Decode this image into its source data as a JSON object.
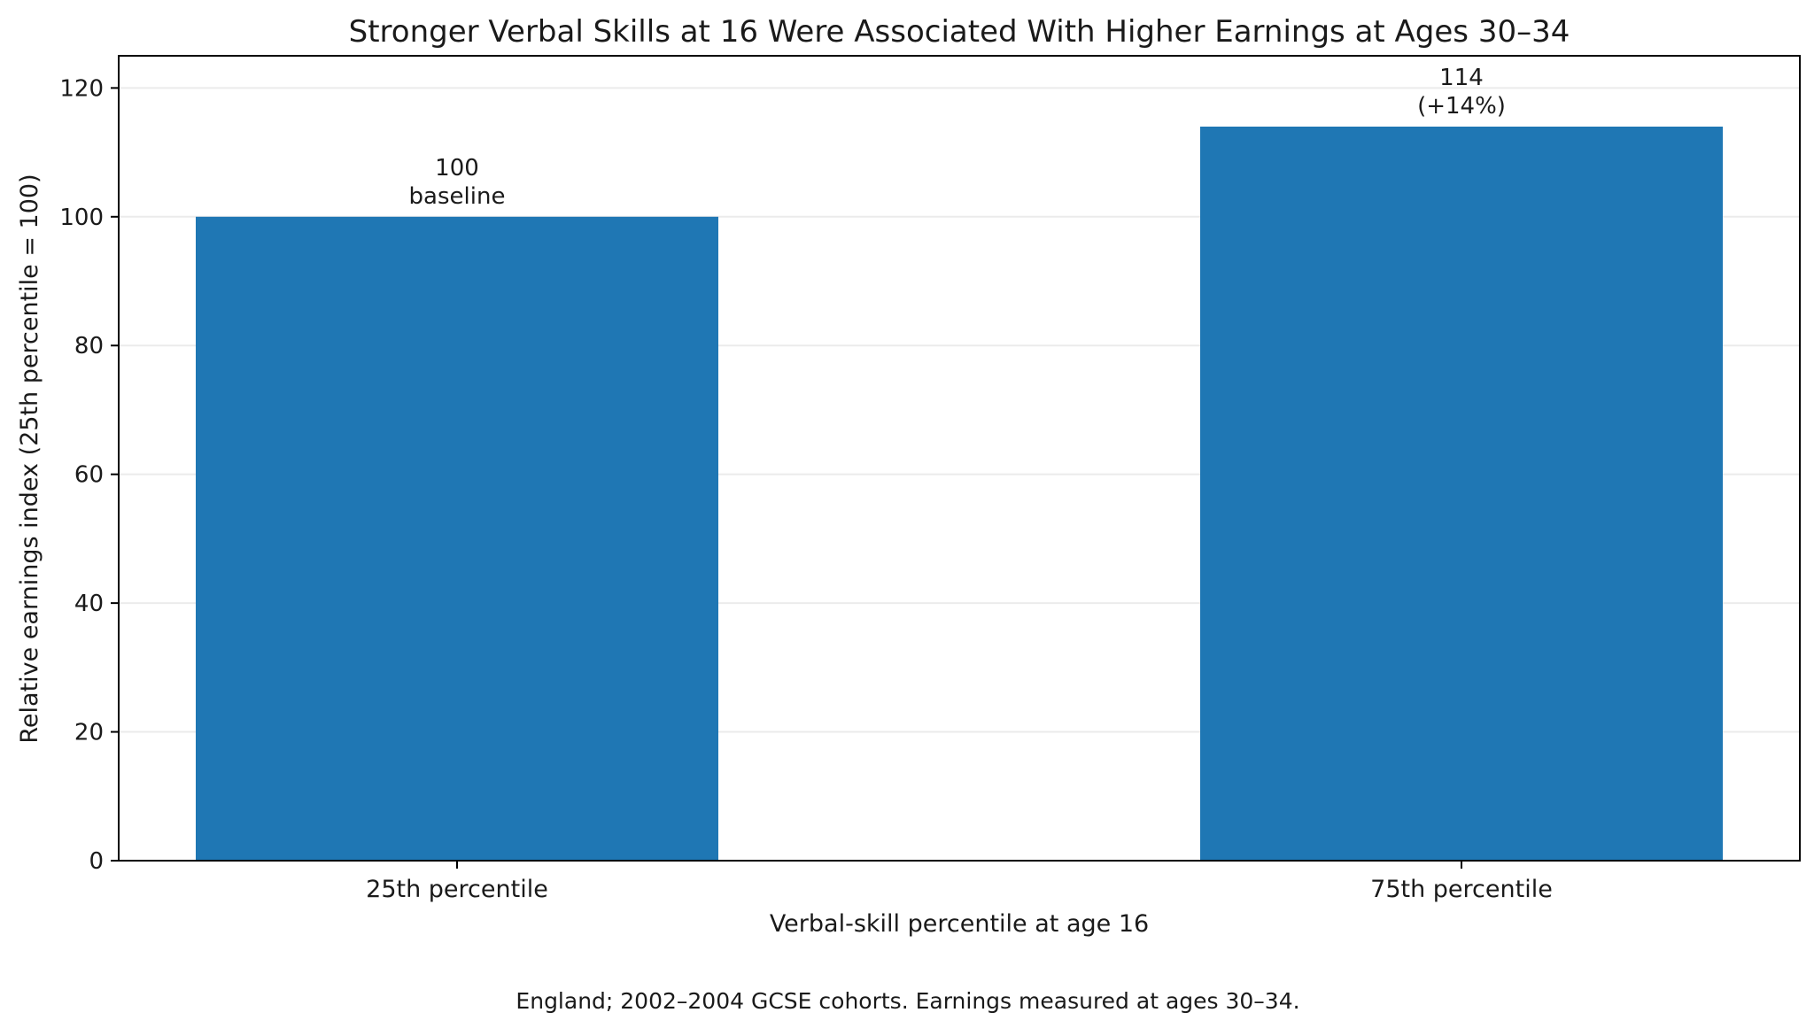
{
  "chart_data": {
    "type": "bar",
    "title": "Stronger Verbal Skills at 16 Were Associated With Higher Earnings at Ages 30–34",
    "xlabel": "Verbal-skill percentile at age 16",
    "ylabel": "Relative earnings index (25th percentile = 100)",
    "categories": [
      "25th percentile",
      "75th percentile"
    ],
    "values": [
      100,
      114
    ],
    "bar_labels": [
      [
        "100",
        "baseline"
      ],
      [
        "114",
        "(+14%)"
      ]
    ],
    "ylim": [
      0,
      125
    ],
    "yticks": [
      "0",
      "20",
      "40",
      "60",
      "80",
      "100",
      "120"
    ],
    "ytick_values": [
      0,
      20,
      40,
      60,
      80,
      100,
      120
    ],
    "grid": "horizontal",
    "bar_color": "#1f77b4",
    "footnote": "England; 2002–2004 GCSE cohorts. Earnings measured at ages 30–34."
  }
}
